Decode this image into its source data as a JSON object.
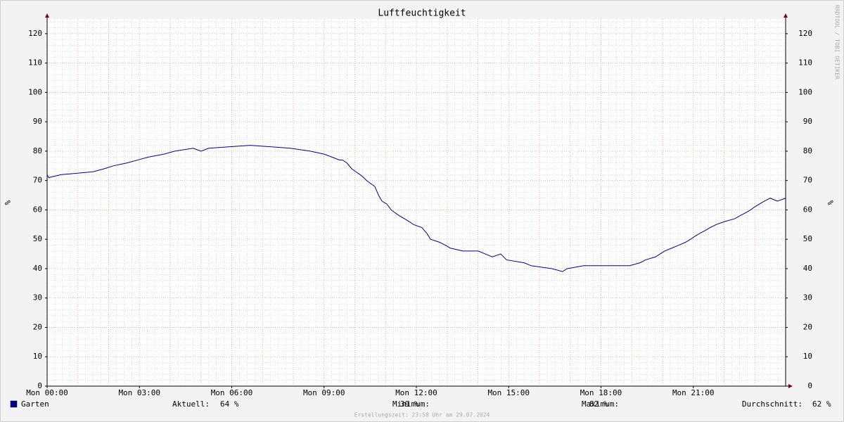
{
  "chart_data": {
    "type": "line",
    "title": "Luftfeuchtigkeit",
    "ylabel": "%",
    "y2label": "%",
    "watermark": "RRDTOOL / TOBI OETIKER",
    "footer": "Erstellungszeit: 23:58 Uhr am 29.07.2024",
    "xlim": [
      0,
      24
    ],
    "xticks": [
      {
        "value": 0,
        "label": "Mon 00:00"
      },
      {
        "value": 3,
        "label": "Mon 03:00"
      },
      {
        "value": 6,
        "label": "Mon 06:00"
      },
      {
        "value": 9,
        "label": "Mon 09:00"
      },
      {
        "value": 12,
        "label": "Mon 12:00"
      },
      {
        "value": 15,
        "label": "Mon 15:00"
      },
      {
        "value": 18,
        "label": "Mon 18:00"
      },
      {
        "value": 21,
        "label": "Mon 21:00"
      }
    ],
    "ylim": [
      0,
      125
    ],
    "yticks": [
      0,
      10,
      20,
      30,
      40,
      50,
      60,
      70,
      80,
      90,
      100,
      110,
      120
    ],
    "y2lim": [
      0,
      125
    ],
    "y2ticks": [
      0,
      10,
      20,
      30,
      40,
      50,
      60,
      70,
      80,
      90,
      100,
      110,
      120
    ],
    "grid": true,
    "x": [
      0,
      0.05,
      0.45,
      1.5,
      1.85,
      2.15,
      2.6,
      2.95,
      3.3,
      3.8,
      4.15,
      4.75,
      5.0,
      5.25,
      6.6,
      7.9,
      8.55,
      9.0,
      9.25,
      9.5,
      9.6,
      9.74,
      9.9,
      10.03,
      10.17,
      10.29,
      10.38,
      10.51,
      10.65,
      10.77,
      10.88,
      11.04,
      11.18,
      11.31,
      11.45,
      11.61,
      11.77,
      11.91,
      12.18,
      12.34,
      12.46,
      12.75,
      12.94,
      13.1,
      13.51,
      14.01,
      14.24,
      14.47,
      14.74,
      14.93,
      15.5,
      15.73,
      16.41,
      16.75,
      16.9,
      17.44,
      18.93,
      19.27,
      19.45,
      19.77,
      20.07,
      20.3,
      20.53,
      20.75,
      20.91,
      21.05,
      21.21,
      21.39,
      21.55,
      21.74,
      22.01,
      22.35,
      22.51,
      22.7,
      22.86,
      22.99,
      23.15,
      23.31,
      23.5,
      23.73,
      24
    ],
    "series": [
      {
        "name": "Garten",
        "color": "#00008b",
        "axis": "y",
        "values": [
          72,
          71,
          72,
          73,
          74,
          75,
          76,
          77,
          78,
          79,
          80,
          81,
          80,
          81,
          82,
          81,
          80,
          79,
          78,
          77,
          77,
          76,
          74,
          73,
          72,
          71,
          70,
          69,
          68,
          65,
          63,
          62,
          60,
          59,
          58,
          57,
          56,
          55,
          54,
          52,
          50,
          49,
          48,
          47,
          46,
          46,
          45,
          44,
          45,
          43,
          42,
          41,
          40,
          39,
          40,
          41,
          41,
          42,
          43,
          44,
          46,
          47,
          48,
          49,
          50,
          51,
          52,
          53,
          54,
          55,
          56,
          57,
          58,
          59,
          60,
          61,
          62,
          63,
          64,
          63,
          64
        ]
      }
    ],
    "stats": [
      {
        "label": "Aktuell:",
        "value": "64 %"
      },
      {
        "label": "Minimum:",
        "value": "39 %"
      },
      {
        "label": "Maximum:",
        "value": "82 %"
      },
      {
        "label": "Durchschnitt:",
        "value": "62 %"
      }
    ]
  }
}
